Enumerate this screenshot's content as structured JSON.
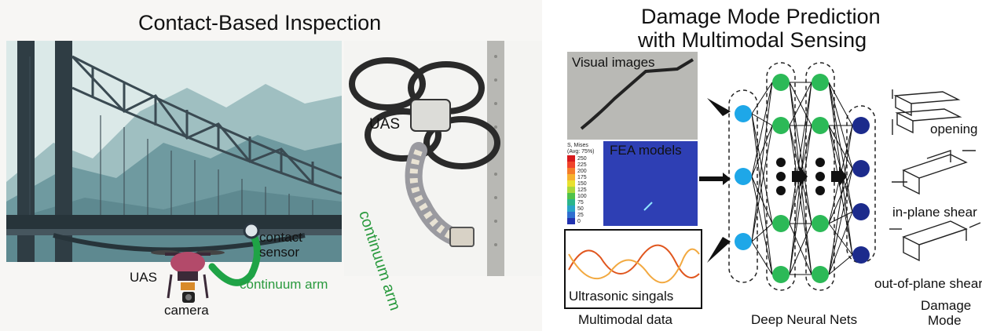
{
  "left": {
    "title": "Contact-Based Inspection",
    "labels": {
      "uas_scene": "UAS",
      "camera": "camera",
      "contact_sensor_1": "contact",
      "contact_sensor_2": "sensor",
      "continuum_arm_scene": "continuum arm",
      "uas_photo": "UAS",
      "continuum_arm_photo": "continuum arm"
    },
    "colors": {
      "sky": "#dfeceb",
      "mountain": "#6f9aa0",
      "bridge": "#2f3d44",
      "arm": "#1fa346",
      "label_green": "#2a9a3e"
    }
  },
  "right": {
    "title_line1": "Damage Mode Prediction",
    "title_line2": "with Multimodal Sensing",
    "inputs": {
      "visual": "Visual images",
      "fea": "FEA models",
      "ultrasonic": "Ultrasonic singals"
    },
    "fea_legend": {
      "header1": "S, Mises",
      "header2": "(Avg: 75%)",
      "values": [
        "250",
        "225",
        "200",
        "175",
        "150",
        "125",
        "100",
        "75",
        "50",
        "25",
        "0"
      ],
      "colors": [
        "#d7191c",
        "#f0432a",
        "#f57c2a",
        "#f6b12e",
        "#e8e12e",
        "#a8d83a",
        "#4fc24a",
        "#2bb58c",
        "#29a3c8",
        "#2f6fd0",
        "#2233b0"
      ]
    },
    "modes": {
      "opening": "opening",
      "in_plane": "in-plane shear",
      "out_of_plane": "out-of-plane shear"
    },
    "bottom_labels": {
      "multimodal": "Multimodal data",
      "dnn": "Deep Neural Nets",
      "damage_1": "Damage",
      "damage_2": "Mode"
    },
    "colors": {
      "input_node": "#1ea7e8",
      "hidden_node": "#2cb957",
      "output_node": "#1c2b8c"
    }
  }
}
